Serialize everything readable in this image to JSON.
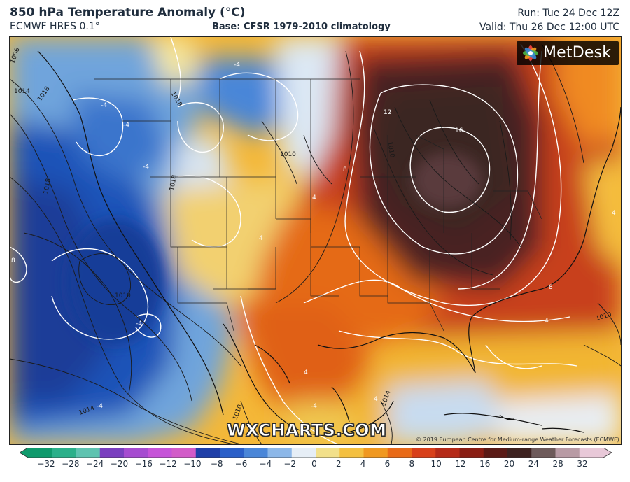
{
  "header": {
    "title": "850 hPa Temperature Anomaly (°C)",
    "model": "ECMWF HRES 0.1°",
    "base": "Base: CFSR 1979-2010 climatology",
    "run": "Run: Tue 24 Dec 12Z",
    "valid": "Valid: Thu 26 Dec 12:00 UTC"
  },
  "brand": {
    "logo_text": "MetDesk",
    "watermark": "WXCHARTS.COM",
    "copyright": "© 2019 European Centre for Medium-range Weather Forecasts (ECMWF)"
  },
  "colorbar": {
    "labels": [
      "−32",
      "−28",
      "−24",
      "−20",
      "−16",
      "−12",
      "−10",
      "−8",
      "−6",
      "−4",
      "−2",
      "0",
      "2",
      "4",
      "6",
      "8",
      "10",
      "12",
      "16",
      "20",
      "24",
      "28",
      "32"
    ],
    "colors": [
      "#0f9a6c",
      "#2bb08a",
      "#5ec3b0",
      "#7a3fbf",
      "#a64bd0",
      "#c653d8",
      "#d25bc8",
      "#1f3fa8",
      "#2a5fc8",
      "#4a86d8",
      "#8cb7e8",
      "#e6eef6",
      "#f2e08a",
      "#f4c040",
      "#f09820",
      "#e86a18",
      "#d8401a",
      "#b52a18",
      "#8a1e14",
      "#5a1a16",
      "#3e2220",
      "#6e5a5a",
      "#b89aa4",
      "#e8c8d8"
    ]
  },
  "map_labels": {
    "isobars": [
      "1006",
      "1014",
      "1018",
      "1018",
      "1018",
      "1010",
      "1010",
      "1014",
      "1018",
      "1010",
      "1010",
      "1010",
      "1014"
    ],
    "anomaly": [
      "-4",
      "-4",
      "-4",
      "-4",
      "-4",
      "-4",
      "-4",
      "8",
      "12",
      "16",
      "8",
      "4",
      "4",
      "4",
      "4",
      "4",
      "4",
      "8"
    ]
  }
}
